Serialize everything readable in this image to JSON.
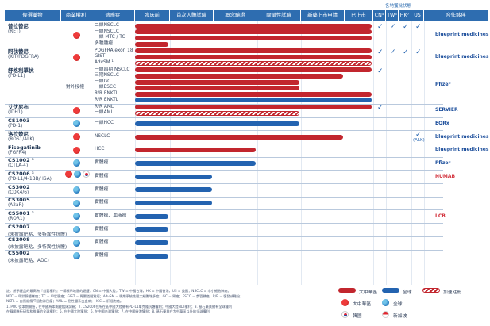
{
  "headers": [
    {
      "label": "候選藥物",
      "left": 0
    },
    {
      "label": "商業權利",
      "left": 0
    },
    {
      "label": "適應症",
      "left": 0
    },
    {
      "label": "臨床前",
      "left": 0
    },
    {
      "label": "首次人體試驗",
      "left": 0
    },
    {
      "label": "概念驗證",
      "left": 0
    },
    {
      "label": "關鍵性試驗",
      "left": 0
    },
    {
      "label": "新藥上市申請",
      "left": 0
    },
    {
      "label": "已上市",
      "left": 0
    },
    {
      "label": "CN⁵",
      "left": 0
    },
    {
      "label": "TW⁶",
      "left": 0
    },
    {
      "label": "HK⁷",
      "left": 0
    },
    {
      "label": "US",
      "left": 0
    },
    {
      "label": "合作夥伴",
      "left": 0
    }
  ],
  "approval_header": "各地獲批狀態",
  "chart_data": {
    "type": "bar",
    "stages": [
      "臨床前",
      "首次人體試驗",
      "概念驗證",
      "關鍵性試驗",
      "新藥上市申請",
      "已上市"
    ],
    "drugs": [
      {
        "name": "普拉替尼",
        "target": "(RET)",
        "rights": "cn",
        "indications": [
          {
            "label": "二線NSCLC",
            "stage": 6,
            "type": "cn"
          },
          {
            "label": "一線NSCLC",
            "stage": 6,
            "type": "cn"
          },
          {
            "label": "一線 MTC / TC",
            "stage": 6,
            "type": "cn"
          },
          {
            "label": "多種腫瘤",
            "stage": 1,
            "type": "cn"
          }
        ],
        "approvals": [
          "CN",
          "TW",
          "HK",
          "US"
        ],
        "partner": "blueprint medicines"
      },
      {
        "name": "阿伐替尼",
        "target": "(KIT/PDGFRA)",
        "rights": "cn",
        "indications": [
          {
            "label": "PDGFRA exon 18",
            "stage": 6,
            "type": "cn"
          },
          {
            "label": "GIST",
            "stage": 6,
            "type": "cn"
          },
          {
            "label": "AdvSM ¹",
            "stage": 6,
            "type": "acc"
          }
        ],
        "approvals": [
          "CN",
          "TW",
          "HK",
          "US"
        ],
        "partner": "blueprint medicines"
      },
      {
        "name": "舒格利單抗",
        "target": "(PD-L1)",
        "rights_text": "對外授權",
        "indications": [
          {
            "label": "一線四期 NSCLC",
            "stage": 6,
            "type": "cn"
          },
          {
            "label": "三期NSCLC",
            "stage": 5,
            "type": "cn"
          },
          {
            "label": "一線GC",
            "stage": 4,
            "type": "cn"
          },
          {
            "label": "一線ESCC",
            "stage": 4,
            "type": "cn"
          },
          {
            "label": "R/R ENKTL",
            "stage": 6,
            "type": "cn"
          },
          {
            "label": "R/R ENKTL",
            "stage": 6,
            "type": "gl"
          }
        ],
        "approvals": [
          "CN"
        ],
        "partner": "Pfizer"
      },
      {
        "name": "艾伏尼布",
        "target": "(IDH1)",
        "rights": "cn",
        "indications": [
          {
            "label": "R/R AML",
            "stage": 6,
            "type": "cn"
          },
          {
            "label": "一線AML",
            "stage": 4,
            "type": "acc"
          }
        ],
        "approvals": [
          "CN"
        ],
        "partner": "SERVIER"
      },
      {
        "name": "CS1003",
        "target": "(PD-1)",
        "rights": "gl",
        "indications": [
          {
            "label": "一線HCC",
            "stage": 4,
            "type": "gl"
          }
        ],
        "partner": "EQRx"
      },
      {
        "name": "洛拉替尼",
        "target": "(ROS1/ALK)",
        "rights": "cn",
        "indications": [
          {
            "label": "NSCLC",
            "stage": 5,
            "type": "cn"
          }
        ],
        "approvals_note": "(ALK)",
        "partner": "blueprint medicines"
      },
      {
        "name": "Fisogatinib",
        "target": "(FGFR4)",
        "rights": "cn",
        "indications": [
          {
            "label": "HCC",
            "stage": 3,
            "type": "cn"
          }
        ],
        "partner": "blueprint medicines"
      },
      {
        "name": "CS1002 ³",
        "target": "(CTLA-4)",
        "rights": "gl",
        "indications": [
          {
            "label": "實體瘤",
            "stage": 3,
            "type": "gl"
          }
        ],
        "partner": "Pfizer"
      },
      {
        "name": "CS2006 ³",
        "target": "(PD-L1/4-1BB/HSA)",
        "rights": "multi",
        "indications": [
          {
            "label": "實體瘤",
            "stage": 2,
            "type": "gl"
          }
        ],
        "partner": "NUMAB"
      },
      {
        "name": "CS3002",
        "target": "(CDK4/6)",
        "rights": "gl",
        "indications": [
          {
            "label": "實體瘤",
            "stage": 2,
            "type": "gl"
          }
        ]
      },
      {
        "name": "CS3005",
        "target": "(A2aR)",
        "rights": "gl",
        "indications": [
          {
            "label": "實體瘤",
            "stage": 2,
            "type": "gl"
          }
        ]
      },
      {
        "name": "CS5001 ³",
        "target": "(ROR1)",
        "rights": "gl",
        "indications": [
          {
            "label": "實體瘤、血液瘤",
            "stage": 1,
            "type": "gl"
          }
        ],
        "partner": "LCB"
      },
      {
        "name": "CS2007",
        "target": "(未披露靶點、多特異性抗體)",
        "rights": "gl",
        "indications": [
          {
            "label": "實體瘤",
            "stage": 1,
            "type": "gl"
          }
        ]
      },
      {
        "name": "CS2008",
        "target": "(未披露靶點、多特異性抗體)",
        "rights": "gl",
        "indications": [
          {
            "label": "實體瘤",
            "stage": 1,
            "type": "gl"
          }
        ]
      },
      {
        "name": "CS5002",
        "target": "(未披露靶點、ADC)",
        "rights": "gl",
        "indications": [
          {
            "label": "實體瘤",
            "stage": 1,
            "type": "gl"
          }
        ]
      }
    ],
    "legend": {
      "cn": "大中華區",
      "gl": "全球",
      "acc": "加速註冊",
      "kr": "韓國",
      "sg": "新加坡"
    }
  },
  "footnotes": [
    "註：所示產品的最高為『首要權利』一欄標示地區的涵蓋：CN = 中國大陸，TW = 中國台灣，HK = 中國香港，US = 美國；NSCLC = 非小細胞肺癌；",
    "MTC = 甲狀腺髓樣癌；TC = 甲狀腺癌；GIST = 胃腸道間質瘤；AdvSM = 晚期系統性肥大細胞增多症；GC = 胃癌；ESCC = 食管鱗癌；R/R = 復發或難治；",
    "NKTL = 自然殺傷/T細胞淋巴瘤；AML = 急性髓系白血病；HCC = 肝細胞癌。",
    "1. POC 從本期開始，在中國為本開啟臨床試驗；2. CS2006在所在區中國大陸擁有PD-L1單克隆抗體權利；中國大陸NDI權利；3. 基石藥業擁有全球權利",
    "在韓國進行研發和推廣的全球權利；5. 在中國大陸獲批；6. 在中國台灣獲批；7. 在中國香港獲批；8. 基石藥業在大中華區以外的全球權利"
  ],
  "colors": {
    "header": "#2e6db0",
    "greater_china": "#c2262e",
    "global": "#2363b0"
  }
}
